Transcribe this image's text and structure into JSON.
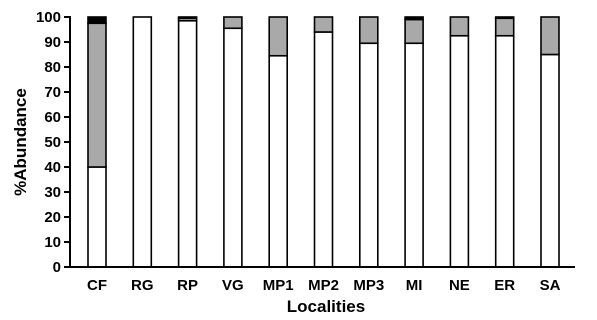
{
  "chart_data": {
    "type": "bar",
    "stacked": true,
    "title": "",
    "xlabel": "Localities",
    "ylabel": "%Abundance",
    "ylim": [
      0,
      100
    ],
    "yticks": [
      0,
      10,
      20,
      30,
      40,
      50,
      60,
      70,
      80,
      90,
      100
    ],
    "grid": false,
    "legend": "none",
    "categories": [
      "CF",
      "RG",
      "RP",
      "VG",
      "MP1",
      "MP2",
      "MP3",
      "MI",
      "NE",
      "ER",
      "SA"
    ],
    "series": [
      {
        "color": "#ffffff",
        "values": [
          40,
          100,
          98.5,
          95.5,
          84.5,
          94,
          89.5,
          89.5,
          92.5,
          92.5,
          85
        ]
      },
      {
        "color": "#a9a9a9",
        "values": [
          57.5,
          0,
          1,
          4.5,
          15.5,
          6,
          10.5,
          9.5,
          7.5,
          7,
          15
        ]
      },
      {
        "color": "#000000",
        "values": [
          2.5,
          0,
          0.5,
          0,
          0,
          0,
          0,
          1,
          0,
          0.5,
          0
        ]
      }
    ]
  }
}
